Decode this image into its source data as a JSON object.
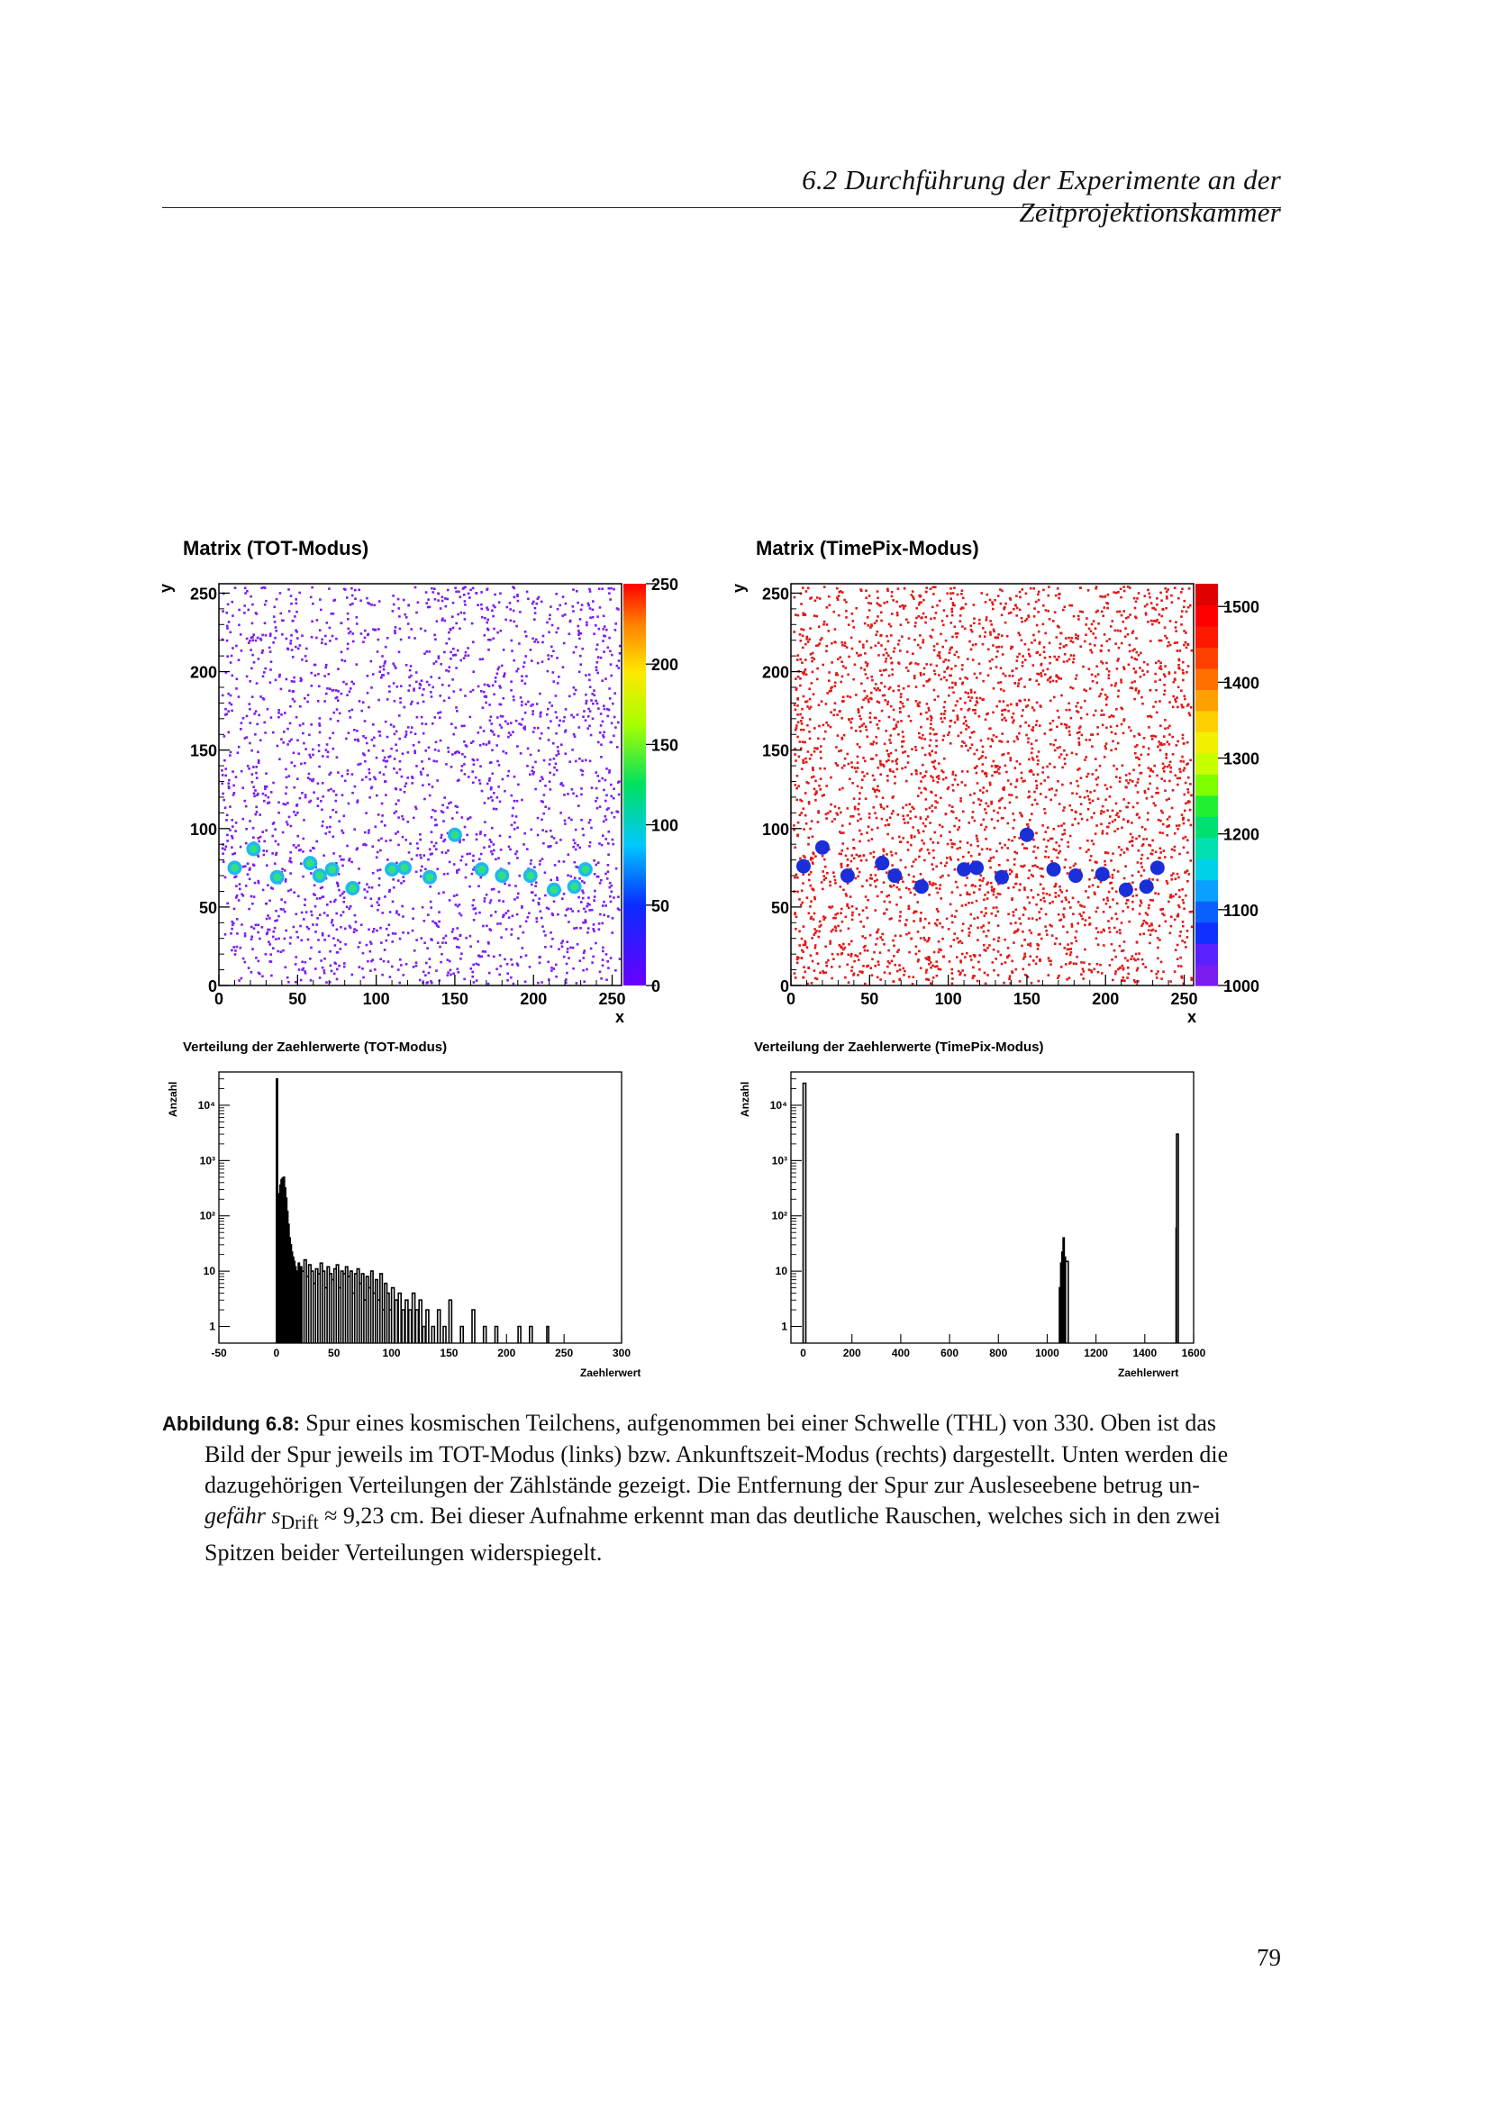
{
  "running_header": "6.2 Durchführung der Experimente an der Zeitprojektionskammer",
  "page_number": "79",
  "caption": {
    "label": "Abbildung 6.8:",
    "lines": [
      "Spur eines kosmischen Teilchens, aufgenommen bei einer Schwelle (THL) von 330. Oben ist das",
      "Bild der Spur jeweils im TOT-Modus (links) bzw. Ankunftszeit-Modus (rechts) dargestellt. Unten werden die",
      "dazugehörigen Verteilungen der Zählstände gezeigt. Die Entfernung der Spur zur Ausleseebene betrug un-",
      "gefähr s",
      "Drift",
      " ≈ 9,23 cm. Bei dieser Aufnahme erkennt man das deutliche Rauschen, welches sich in den zwei",
      "Spitzen beider Verteilungen widerspiegelt."
    ]
  },
  "colors": {
    "noise_tot": "#7a1cf0",
    "noise_timepix": "#e01818",
    "track_core_tot": "#30e080",
    "track_edge_tot": "#20b8f0",
    "track_timepix": "#1a2fd8"
  },
  "chart_data": [
    {
      "type": "heatmap",
      "title": "Matrix (TOT-Modus)",
      "xlabel": "x",
      "ylabel": "y",
      "xlim": [
        0,
        256
      ],
      "ylim": [
        0,
        256
      ],
      "x_ticks": [
        "0",
        "50",
        "100",
        "150",
        "200",
        "250"
      ],
      "y_ticks": [
        "0",
        "50",
        "100",
        "150",
        "200",
        "250"
      ],
      "colorbar": {
        "range": [
          0,
          250
        ],
        "ticks": [
          "0",
          "50",
          "100",
          "150",
          "200",
          "250"
        ]
      },
      "track_clusters": [
        [
          10,
          75
        ],
        [
          22,
          87
        ],
        [
          37,
          69
        ],
        [
          58,
          78
        ],
        [
          64,
          70
        ],
        [
          72,
          74
        ],
        [
          85,
          62
        ],
        [
          110,
          74
        ],
        [
          118,
          75
        ],
        [
          134,
          69
        ],
        [
          150,
          96
        ],
        [
          167,
          74
        ],
        [
          180,
          70
        ],
        [
          198,
          70
        ],
        [
          213,
          61
        ],
        [
          226,
          63
        ],
        [
          233,
          74
        ]
      ]
    },
    {
      "type": "heatmap",
      "title": "Matrix (TimePix-Modus)",
      "xlabel": "x",
      "ylabel": "y",
      "xlim": [
        0,
        256
      ],
      "ylim": [
        0,
        256
      ],
      "x_ticks": [
        "0",
        "50",
        "100",
        "150",
        "200",
        "250"
      ],
      "y_ticks": [
        "0",
        "50",
        "100",
        "150",
        "200",
        "250"
      ],
      "colorbar": {
        "range": [
          1000,
          1530
        ],
        "ticks": [
          "1000",
          "1100",
          "1200",
          "1300",
          "1400",
          "1500"
        ]
      },
      "track_clusters": [
        [
          8,
          76
        ],
        [
          20,
          88
        ],
        [
          36,
          70
        ],
        [
          58,
          78
        ],
        [
          66,
          70
        ],
        [
          83,
          63
        ],
        [
          110,
          74
        ],
        [
          118,
          75
        ],
        [
          134,
          69
        ],
        [
          150,
          96
        ],
        [
          167,
          74
        ],
        [
          181,
          70
        ],
        [
          198,
          71
        ],
        [
          213,
          61
        ],
        [
          226,
          63
        ],
        [
          233,
          75
        ]
      ]
    },
    {
      "type": "bar",
      "title": "Verteilung der Zaehlerwerte (TOT-Modus)",
      "xlabel": "Zaehlerwert",
      "ylabel": "Anzahl",
      "xlim": [
        -50,
        300
      ],
      "ylog": true,
      "ylim": [
        0.5,
        40000
      ],
      "x_ticks": [
        "-50",
        "0",
        "50",
        "100",
        "150",
        "200",
        "250",
        "300"
      ],
      "y_ticks": [
        "1",
        "10",
        "10²",
        "10³",
        "10⁴"
      ],
      "x": [
        0,
        1,
        2,
        3,
        4,
        5,
        6,
        7,
        8,
        9,
        10,
        11,
        12,
        13,
        14,
        15,
        16,
        17,
        18,
        19,
        20,
        21,
        22,
        24,
        26,
        28,
        30,
        32,
        34,
        36,
        38,
        40,
        42,
        44,
        46,
        48,
        50,
        52,
        54,
        56,
        58,
        60,
        62,
        64,
        66,
        68,
        70,
        72,
        74,
        76,
        78,
        80,
        82,
        84,
        86,
        88,
        90,
        92,
        94,
        96,
        98,
        100,
        103,
        106,
        109,
        112,
        115,
        118,
        121,
        124,
        127,
        130,
        135,
        140,
        145,
        150,
        160,
        170,
        180,
        190,
        210,
        220,
        235
      ],
      "values": [
        30000,
        120,
        250,
        360,
        450,
        480,
        500,
        320,
        210,
        120,
        70,
        40,
        30,
        22,
        18,
        15,
        12,
        10,
        8,
        14,
        9,
        12,
        10,
        16,
        8,
        13,
        10,
        6,
        11,
        9,
        14,
        10,
        5,
        12,
        9,
        7,
        11,
        13,
        5,
        10,
        9,
        12,
        8,
        10,
        4,
        9,
        11,
        6,
        9,
        3,
        8,
        5,
        10,
        4,
        7,
        3,
        9,
        2,
        6,
        4,
        2,
        5,
        3,
        4,
        2,
        3,
        2,
        4,
        2,
        3,
        1,
        2,
        1,
        2,
        1,
        3,
        1,
        2,
        1,
        1,
        1,
        1,
        1
      ]
    },
    {
      "type": "bar",
      "title": "Verteilung der Zaehlerwerte (TimePix-Modus)",
      "xlabel": "Zaehlerwert",
      "ylabel": "Anzahl",
      "xlim": [
        -50,
        1600
      ],
      "ylog": true,
      "ylim": [
        0.5,
        40000
      ],
      "x_ticks": [
        "0",
        "200",
        "400",
        "600",
        "800",
        "1000",
        "1200",
        "1400",
        "1600"
      ],
      "y_ticks": [
        "1",
        "10",
        "10²",
        "10³",
        "10⁴"
      ],
      "x": [
        0,
        1050,
        1055,
        1060,
        1065,
        1070,
        1075,
        1528,
        1530
      ],
      "values": [
        25000,
        5,
        14,
        22,
        40,
        18,
        15,
        60,
        3000
      ]
    }
  ]
}
